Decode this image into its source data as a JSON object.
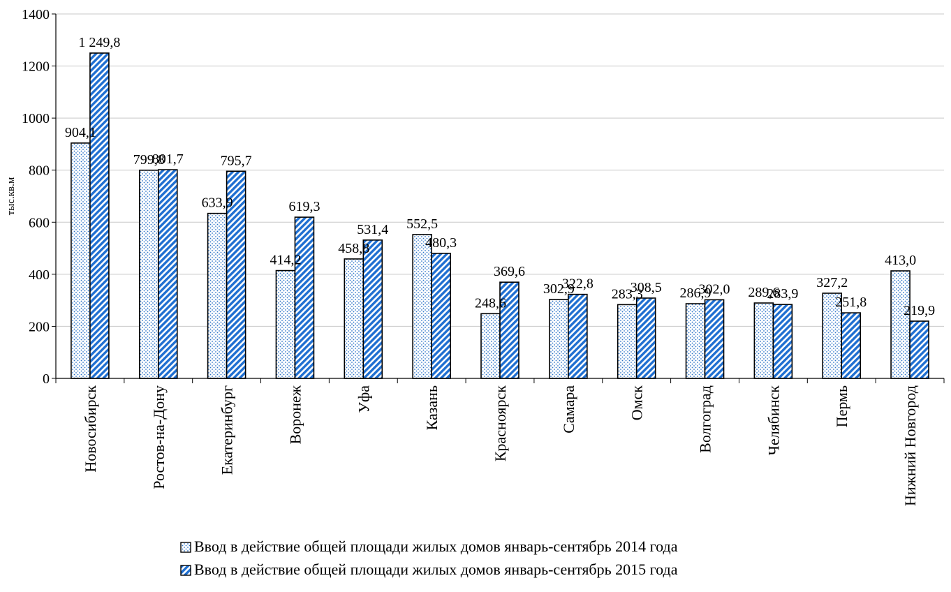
{
  "chart_data": {
    "type": "bar",
    "title": "",
    "xlabel": "",
    "ylabel": "тыс.кв.м",
    "ylim": [
      0,
      1400
    ],
    "yticks": [
      0,
      200,
      400,
      600,
      800,
      1000,
      1200,
      1400
    ],
    "grid": true,
    "legend_position": "bottom",
    "categories": [
      "Новосибирск",
      "Ростов-на-Дону",
      "Екатеринбург",
      "Воронеж",
      "Уфа",
      "Казань",
      "Красноярск",
      "Самара",
      "Омск",
      "Волгоград",
      "Челябинск",
      "Пермь",
      "Нижний Новгород"
    ],
    "series": [
      {
        "name": "Ввод в действие общей площади жилых домов январь-сентябрь 2014 года",
        "values": [
          904.1,
          799.8,
          633.9,
          414.2,
          458.8,
          552.5,
          248.6,
          302.9,
          283.3,
          286.9,
          289.6,
          327.2,
          413.0
        ],
        "labels": [
          "904,1",
          "799,8",
          "633,9",
          "414,2",
          "458,8",
          "552,5",
          "248,6",
          "302,9",
          "283,3",
          "286,9",
          "289,6",
          "327,2",
          "413,0"
        ],
        "pattern": "dots",
        "color": "#2e75c8"
      },
      {
        "name": "Ввод в действие общей площади жилых домов январь-сентябрь 2015 года",
        "values": [
          1249.8,
          801.7,
          795.7,
          619.3,
          531.4,
          480.3,
          369.6,
          322.8,
          308.5,
          302.0,
          283.9,
          251.8,
          219.9
        ],
        "labels": [
          "1 249,8",
          "801,7",
          "795,7",
          "619,3",
          "531,4",
          "480,3",
          "369,6",
          "322,8",
          "308,5",
          "302,0",
          "283,9",
          "251,8",
          "219,9"
        ],
        "pattern": "stripes",
        "color": "#1f6fd1"
      }
    ]
  }
}
